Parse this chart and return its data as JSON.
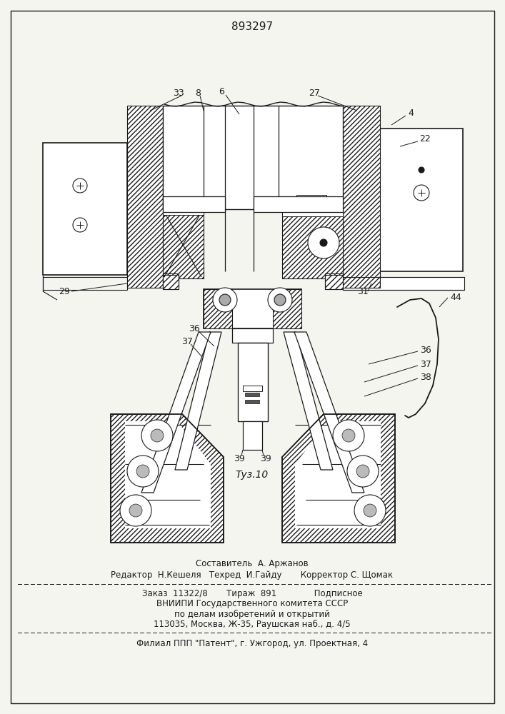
{
  "patent_number": "893297",
  "figure_label": "Τуз.10",
  "bg": "#f5f5f0",
  "lc": "#1a1a1a",
  "footer_line1": "Составитель  А. Аржанов",
  "footer_line2": "Редактор  Н.Кешеля   Техред  И.Гайду       Корректор С. Щомак",
  "footer_line3": "Заказ  11322/8       Тираж  891              Подписное",
  "footer_line4": "ВНИИПИ Государственного комитета СССР",
  "footer_line5": "по делам изобретений и открытий",
  "footer_line6": "113035, Москва, Ж-35, Раушская наб., д. 4/5",
  "footer_line7": "Филиал ППП \"Патент\", г. Ужгород, ул. Проектная, 4"
}
